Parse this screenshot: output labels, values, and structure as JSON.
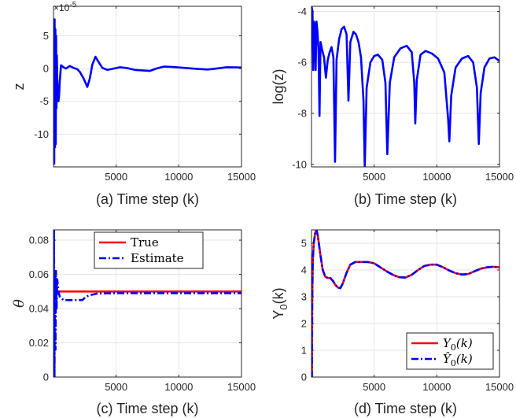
{
  "chart_data": [
    {
      "type": "line",
      "caption": "(a) Time step (k)",
      "ylabel": "z",
      "exponent_label": "×10",
      "exponent_power": "-5",
      "xlim": [
        0,
        15000
      ],
      "ylim": [
        -15,
        9.5
      ],
      "x_ticks": [
        5000,
        10000,
        15000
      ],
      "y_ticks": [
        -10,
        -5,
        0,
        5
      ],
      "grid": true,
      "series": [
        {
          "color": "#0000ff",
          "points": [
            [
              0,
              0
            ],
            [
              30,
              7.5
            ],
            [
              60,
              -14.5
            ],
            [
              90,
              7.5
            ],
            [
              120,
              -12
            ],
            [
              150,
              6
            ],
            [
              180,
              -11.5
            ],
            [
              210,
              5
            ],
            [
              240,
              -6
            ],
            [
              270,
              2
            ],
            [
              300,
              -1.5
            ],
            [
              330,
              -3
            ],
            [
              400,
              -5
            ],
            [
              450,
              -4
            ],
            [
              500,
              -2
            ],
            [
              600,
              0.5
            ],
            [
              800,
              0.2
            ],
            [
              1000,
              0
            ],
            [
              1300,
              0.4
            ],
            [
              1600,
              0.1
            ],
            [
              1900,
              -0.1
            ],
            [
              2100,
              -0.5
            ],
            [
              2400,
              -1.5
            ],
            [
              2700,
              -2.8
            ],
            [
              2900,
              -1.5
            ],
            [
              3100,
              0.6
            ],
            [
              3350,
              1.8
            ],
            [
              3600,
              1
            ],
            [
              3900,
              0.1
            ],
            [
              4300,
              -0.2
            ],
            [
              4800,
              0
            ],
            [
              5300,
              0.2
            ],
            [
              5800,
              0.1
            ],
            [
              6500,
              -0.2
            ],
            [
              7200,
              -0.3
            ],
            [
              7700,
              -0.35
            ],
            [
              8200,
              0
            ],
            [
              8800,
              0.3
            ],
            [
              9500,
              0.25
            ],
            [
              10500,
              0.1
            ],
            [
              11500,
              -0.05
            ],
            [
              12300,
              -0.15
            ],
            [
              13000,
              0
            ],
            [
              13800,
              0.2
            ],
            [
              14500,
              0.18
            ],
            [
              15000,
              0.15
            ]
          ]
        }
      ]
    },
    {
      "type": "line",
      "caption": "(b) Time step (k)",
      "ylabel": "log(z)",
      "xlim": [
        0,
        15000
      ],
      "ylim": [
        -10.1,
        -3.8
      ],
      "x_ticks": [
        5000,
        10000,
        15000
      ],
      "y_ticks": [
        -10,
        -8,
        -6,
        -4
      ],
      "grid": true,
      "series": [
        {
          "color": "#0000ff",
          "points": [
            [
              0,
              -3.8
            ],
            [
              80,
              -4
            ],
            [
              140,
              -6.3
            ],
            [
              200,
              -4.4
            ],
            [
              260,
              -4.5
            ],
            [
              330,
              -6.3
            ],
            [
              400,
              -4.4
            ],
            [
              480,
              -4.8
            ],
            [
              560,
              -5.5
            ],
            [
              640,
              -8.1
            ],
            [
              720,
              -5.2
            ],
            [
              850,
              -5.5
            ],
            [
              1000,
              -5.8
            ],
            [
              1150,
              -6.6
            ],
            [
              1300,
              -5.9
            ],
            [
              1450,
              -5.6
            ],
            [
              1600,
              -5.4
            ],
            [
              1750,
              -5.8
            ],
            [
              1880,
              -9.9
            ],
            [
              2000,
              -5.9
            ],
            [
              2200,
              -5.1
            ],
            [
              2400,
              -4.7
            ],
            [
              2600,
              -4.6
            ],
            [
              2800,
              -4.9
            ],
            [
              2950,
              -7.5
            ],
            [
              3100,
              -5.2
            ],
            [
              3350,
              -4.8
            ],
            [
              3550,
              -4.9
            ],
            [
              3750,
              -5.2
            ],
            [
              3950,
              -5.8
            ],
            [
              4150,
              -7.5
            ],
            [
              4250,
              -10.1
            ],
            [
              4400,
              -7
            ],
            [
              4700,
              -6
            ],
            [
              5000,
              -5.75
            ],
            [
              5300,
              -5.7
            ],
            [
              5650,
              -5.9
            ],
            [
              5900,
              -6.8
            ],
            [
              6050,
              -9.6
            ],
            [
              6250,
              -6.8
            ],
            [
              6600,
              -5.8
            ],
            [
              7100,
              -5.45
            ],
            [
              7600,
              -5.35
            ],
            [
              8000,
              -5.6
            ],
            [
              8200,
              -6.8
            ],
            [
              8280,
              -8.4
            ],
            [
              8400,
              -6.7
            ],
            [
              8700,
              -5.7
            ],
            [
              9100,
              -5.55
            ],
            [
              9600,
              -5.65
            ],
            [
              10100,
              -5.85
            ],
            [
              10600,
              -6.4
            ],
            [
              10900,
              -8.2
            ],
            [
              11000,
              -9.1
            ],
            [
              11150,
              -7.3
            ],
            [
              11500,
              -6.2
            ],
            [
              12000,
              -5.85
            ],
            [
              12500,
              -5.75
            ],
            [
              12900,
              -6.0
            ],
            [
              13200,
              -7.0
            ],
            [
              13350,
              -9.2
            ],
            [
              13500,
              -7.2
            ],
            [
              13800,
              -6.2
            ],
            [
              14200,
              -5.85
            ],
            [
              14600,
              -5.8
            ],
            [
              15000,
              -5.95
            ]
          ]
        }
      ]
    },
    {
      "type": "line",
      "caption": "(c) Time step (k)",
      "ylabel": "θ",
      "xlim": [
        0,
        15000
      ],
      "ylim": [
        0,
        0.086
      ],
      "x_ticks": [
        5000,
        10000,
        15000
      ],
      "y_ticks": [
        0,
        0.02,
        0.04,
        0.06,
        0.08
      ],
      "grid": true,
      "legend": {
        "placement": "top-right",
        "entries": [
          "True",
          "Estimate"
        ]
      },
      "series": [
        {
          "name": "True",
          "color": "#ff0000",
          "dash": "solid",
          "points": [
            [
              0,
              0.05
            ],
            [
              15000,
              0.05
            ]
          ]
        },
        {
          "name": "Estimate",
          "color": "#0000ff",
          "dash": "dashdot",
          "points": [
            [
              0,
              0
            ],
            [
              40,
              0.086
            ],
            [
              80,
              0
            ],
            [
              120,
              0.06
            ],
            [
              160,
              0.016
            ],
            [
              200,
              0.062
            ],
            [
              250,
              0.04
            ],
            [
              300,
              0.057
            ],
            [
              400,
              0.05
            ],
            [
              500,
              0.047
            ],
            [
              800,
              0.045
            ],
            [
              1500,
              0.045
            ],
            [
              2300,
              0.045
            ],
            [
              2600,
              0.047
            ],
            [
              3000,
              0.048
            ],
            [
              3500,
              0.0488
            ],
            [
              5000,
              0.049
            ],
            [
              8000,
              0.049
            ],
            [
              12000,
              0.049
            ],
            [
              15000,
              0.049
            ]
          ]
        }
      ]
    },
    {
      "type": "line",
      "caption": "(d) Time step (k)",
      "ylabel": "Y",
      "ylabel_sub": "0",
      "ylabel_suffix": "(k)",
      "xlim": [
        0,
        15000
      ],
      "ylim": [
        0,
        5.5
      ],
      "x_ticks": [
        5000,
        10000,
        15000
      ],
      "y_ticks": [
        0,
        1,
        2,
        3,
        4,
        5
      ],
      "grid": true,
      "legend": {
        "placement": "bottom-right",
        "entries": [
          "Y",
          "Ŷ"
        ],
        "entry_sub": "0",
        "entry_suffix": "(k)"
      },
      "series": [
        {
          "name": "Y0(k)",
          "color": "#ff0000",
          "dash": "solid",
          "points": [
            [
              0,
              0
            ],
            [
              30,
              0
            ],
            [
              60,
              2.9
            ],
            [
              100,
              4.3
            ],
            [
              180,
              5.0
            ],
            [
              300,
              5.4
            ],
            [
              400,
              5.5
            ],
            [
              500,
              5.3
            ],
            [
              700,
              4.6
            ],
            [
              900,
              4.0
            ],
            [
              1100,
              3.75
            ],
            [
              1300,
              3.7
            ],
            [
              1500,
              3.7
            ],
            [
              1700,
              3.6
            ],
            [
              1900,
              3.45
            ],
            [
              2100,
              3.35
            ],
            [
              2300,
              3.32
            ],
            [
              2500,
              3.5
            ],
            [
              2800,
              3.9
            ],
            [
              3100,
              4.2
            ],
            [
              3500,
              4.3
            ],
            [
              4000,
              4.3
            ],
            [
              4500,
              4.3
            ],
            [
              5000,
              4.25
            ],
            [
              5500,
              4.1
            ],
            [
              6000,
              3.95
            ],
            [
              6500,
              3.82
            ],
            [
              7000,
              3.73
            ],
            [
              7500,
              3.72
            ],
            [
              8000,
              3.82
            ],
            [
              8500,
              4.0
            ],
            [
              9000,
              4.15
            ],
            [
              9500,
              4.2
            ],
            [
              10000,
              4.2
            ],
            [
              10500,
              4.1
            ],
            [
              11000,
              3.98
            ],
            [
              11500,
              3.88
            ],
            [
              12000,
              3.83
            ],
            [
              12500,
              3.85
            ],
            [
              13000,
              3.95
            ],
            [
              13500,
              4.05
            ],
            [
              14000,
              4.1
            ],
            [
              14500,
              4.12
            ],
            [
              15000,
              4.1
            ]
          ]
        },
        {
          "name": "Ŷ0(k)",
          "color": "#0000ff",
          "dash": "dashdot",
          "points": [
            [
              0,
              0
            ],
            [
              30,
              0
            ],
            [
              60,
              2.9
            ],
            [
              100,
              4.3
            ],
            [
              180,
              5.0
            ],
            [
              300,
              5.4
            ],
            [
              400,
              5.5
            ],
            [
              500,
              5.3
            ],
            [
              700,
              4.6
            ],
            [
              900,
              4.0
            ],
            [
              1100,
              3.75
            ],
            [
              1300,
              3.7
            ],
            [
              1500,
              3.7
            ],
            [
              1700,
              3.6
            ],
            [
              1900,
              3.45
            ],
            [
              2100,
              3.35
            ],
            [
              2300,
              3.32
            ],
            [
              2500,
              3.5
            ],
            [
              2800,
              3.9
            ],
            [
              3100,
              4.2
            ],
            [
              3500,
              4.3
            ],
            [
              4000,
              4.3
            ],
            [
              4500,
              4.3
            ],
            [
              5000,
              4.25
            ],
            [
              5500,
              4.1
            ],
            [
              6000,
              3.95
            ],
            [
              6500,
              3.82
            ],
            [
              7000,
              3.73
            ],
            [
              7500,
              3.72
            ],
            [
              8000,
              3.82
            ],
            [
              8500,
              4.0
            ],
            [
              9000,
              4.15
            ],
            [
              9500,
              4.2
            ],
            [
              10000,
              4.2
            ],
            [
              10500,
              4.1
            ],
            [
              11000,
              3.98
            ],
            [
              11500,
              3.88
            ],
            [
              12000,
              3.83
            ],
            [
              12500,
              3.85
            ],
            [
              13000,
              3.95
            ],
            [
              13500,
              4.05
            ],
            [
              14000,
              4.1
            ],
            [
              14500,
              4.12
            ],
            [
              15000,
              4.1
            ]
          ]
        }
      ]
    }
  ]
}
